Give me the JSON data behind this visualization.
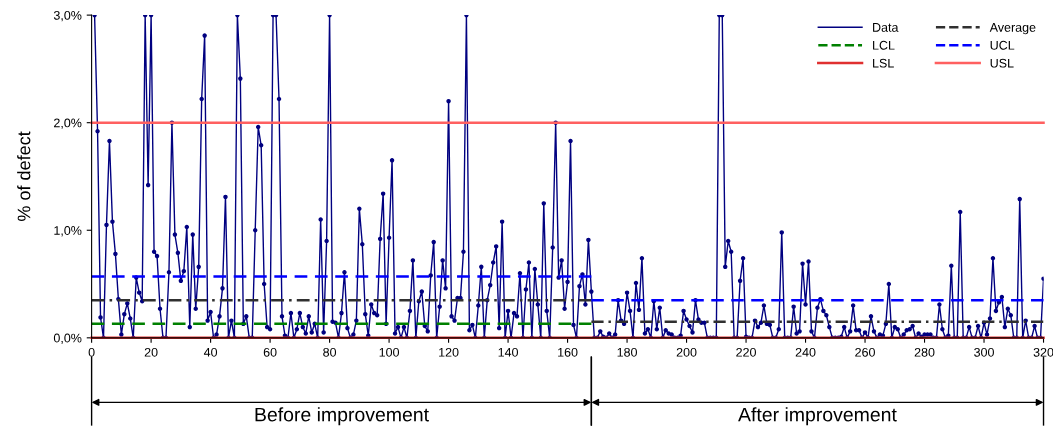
{
  "chart_data": {
    "type": "line",
    "ylabel": "% of defect",
    "xlim": [
      0,
      320
    ],
    "xticks": [
      0,
      20,
      40,
      60,
      80,
      100,
      120,
      140,
      160,
      180,
      200,
      220,
      240,
      260,
      280,
      300,
      320
    ],
    "ylim": [
      0,
      3
    ],
    "yticks": [
      {
        "value": 0,
        "label": "0,0%"
      },
      {
        "value": 1,
        "label": "1,0%"
      },
      {
        "value": 2,
        "label": "2,0%"
      },
      {
        "value": 3,
        "label": "3,0%"
      }
    ],
    "grid": false,
    "legend": "top right",
    "series": [
      {
        "name": "Data",
        "color": "#000080",
        "marker": "circle",
        "line_style": "solid",
        "x": [
          1,
          2,
          3,
          4,
          5,
          6,
          7,
          8,
          9,
          10,
          11,
          12,
          13,
          14,
          15,
          16,
          17,
          18,
          19,
          20,
          21,
          22,
          23,
          24,
          25,
          26,
          27,
          28,
          29,
          30,
          31,
          32,
          33,
          34,
          35,
          36,
          37,
          38,
          39,
          40,
          41,
          42,
          43,
          44,
          45,
          46,
          47,
          48,
          49,
          50,
          51,
          52,
          53,
          54,
          55,
          56,
          57,
          58,
          59,
          60,
          61,
          62,
          63,
          64,
          65,
          66,
          67,
          68,
          69,
          70,
          71,
          72,
          73,
          74,
          75,
          76,
          77,
          78,
          79,
          80,
          81,
          82,
          83,
          84,
          85,
          86,
          87,
          88,
          89,
          90,
          91,
          92,
          93,
          94,
          95,
          96,
          97,
          98,
          99,
          100,
          101,
          102,
          103,
          104,
          105,
          106,
          107,
          108,
          109,
          110,
          111,
          112,
          113,
          114,
          115,
          116,
          117,
          118,
          119,
          120,
          121,
          122,
          123,
          124,
          125,
          126,
          127,
          128,
          129,
          130,
          131,
          132,
          133,
          134,
          135,
          136,
          137,
          138,
          139,
          140,
          141,
          142,
          143,
          144,
          145,
          146,
          147,
          148,
          149,
          150,
          151,
          152,
          153,
          154,
          155,
          156,
          157,
          158,
          159,
          160,
          161,
          162,
          163,
          164,
          165,
          166,
          167,
          168,
          169,
          170,
          171,
          172,
          173,
          174,
          175,
          176,
          177,
          178,
          179,
          180,
          181,
          182,
          183,
          184,
          185,
          186,
          187,
          188,
          189,
          190,
          191,
          192,
          193,
          194,
          195,
          196,
          197,
          198,
          199,
          200,
          201,
          202,
          203,
          204,
          205,
          206,
          207,
          208,
          209,
          210,
          211,
          212,
          213,
          214,
          215,
          216,
          217,
          218,
          219,
          220,
          221,
          222,
          223,
          224,
          225,
          226,
          227,
          228,
          229,
          230,
          231,
          232,
          233,
          234,
          235,
          236,
          237,
          238,
          239,
          240,
          241,
          242,
          243,
          244,
          245,
          246,
          247,
          248,
          249,
          250,
          251,
          252,
          253,
          254,
          255,
          256,
          257,
          258,
          259,
          260,
          261,
          262,
          263,
          264,
          265,
          266,
          267,
          268,
          269,
          270,
          271,
          272,
          273,
          274,
          275,
          276,
          277,
          278,
          279,
          280,
          281,
          282,
          283,
          284,
          285,
          286,
          287,
          288,
          289,
          290,
          291,
          292,
          293,
          294,
          295,
          296,
          297,
          298,
          299,
          300,
          301,
          302,
          303,
          304,
          305,
          306,
          307,
          308,
          309,
          310,
          311,
          312,
          313,
          314,
          315,
          316,
          317,
          318,
          319,
          320
        ],
        "values": [
          3,
          1.92,
          0.19,
          0,
          1.05,
          1.83,
          1.08,
          0.78,
          0.36,
          0.03,
          0.22,
          0.32,
          0.18,
          0,
          0.56,
          0.42,
          0.34,
          3,
          1.42,
          3,
          0.8,
          0.76,
          0.27,
          0,
          0,
          0.61,
          2.0,
          0.96,
          0.79,
          0.53,
          0.62,
          1.03,
          0.1,
          0.96,
          0.27,
          0.66,
          2.22,
          2.81,
          0.16,
          0.24,
          0,
          0.03,
          0.2,
          0.46,
          1.31,
          0,
          0.16,
          0,
          3,
          2.41,
          0.13,
          0.2,
          0,
          0,
          1.0,
          1.96,
          1.79,
          0.5,
          0.1,
          0.08,
          3,
          3,
          2.22,
          0.2,
          0.02,
          0,
          0.23,
          0,
          0.08,
          0.23,
          0.1,
          0.04,
          0.2,
          0.05,
          0.13,
          0,
          1.1,
          0.05,
          0.9,
          3,
          0.15,
          0.14,
          0,
          0.23,
          0.61,
          0.09,
          0,
          0.03,
          0.16,
          1.2,
          0.87,
          0.22,
          0.02,
          0.31,
          0.23,
          0.21,
          0.92,
          1.34,
          0.13,
          0.93,
          1.65,
          0.04,
          0.1,
          0,
          0.1,
          0,
          0.25,
          0.72,
          0,
          0.34,
          0.43,
          0.11,
          0.06,
          0.58,
          0.89,
          0,
          0.29,
          0.72,
          0.46,
          2.2,
          0.2,
          0.16,
          0.37,
          0.37,
          0.8,
          3,
          0.07,
          0.12,
          0,
          0.3,
          0.66,
          0,
          0.35,
          0.49,
          0.7,
          0.85,
          0.09,
          1.08,
          0,
          0.25,
          0,
          0.23,
          0.2,
          0.6,
          0,
          0.45,
          0.7,
          0,
          0.64,
          0.31,
          0,
          1.25,
          0.25,
          0,
          0.84,
          2.0,
          0.56,
          0.72,
          0.27,
          0.52,
          1.83,
          0.12,
          0,
          0.48,
          0.59,
          0.31,
          0.91,
          0.43,
          0,
          0,
          0.06,
          0.01,
          0,
          0.04,
          0,
          0.03,
          0.35,
          0.16,
          0.13,
          0.42,
          0.25,
          0,
          0.51,
          0.26,
          0.74,
          0.04,
          0.08,
          0,
          0.34,
          0.08,
          0.28,
          0,
          0.07,
          0.04,
          0.03,
          0,
          0,
          0.02,
          0.25,
          0.17,
          0.11,
          0.05,
          0.35,
          0.17,
          0.14,
          0.14,
          0,
          0,
          0,
          0,
          3,
          3,
          0.66,
          0.9,
          0.8,
          0,
          0,
          0.53,
          0.74,
          0.01,
          0,
          0,
          0.16,
          0.1,
          0.14,
          0.3,
          0.13,
          0.12,
          0,
          0,
          0.08,
          0.98,
          0,
          0,
          0,
          0.29,
          0.04,
          0.06,
          0.69,
          0.31,
          0.71,
          0.06,
          0,
          0.28,
          0.36,
          0.25,
          0.21,
          0.1,
          0,
          0,
          0,
          0.01,
          0.1,
          0,
          0.06,
          0.3,
          0.07,
          0.07,
          0,
          0.05,
          0,
          0.2,
          0.06,
          0,
          0.03,
          0.02,
          0.13,
          0.5,
          0,
          0.1,
          0.08,
          0,
          0.03,
          0.07,
          0.08,
          0.11,
          0,
          0.04,
          0.01,
          0.03,
          0.03,
          0.03,
          0,
          0,
          0.31,
          0.08,
          0,
          0.02,
          0.67,
          0,
          0,
          1.17,
          0,
          0,
          0.1,
          0,
          0,
          0.11,
          0,
          0.14,
          0.03,
          0.18,
          0.74,
          0.25,
          0.33,
          0.38,
          0.1,
          0.27,
          0.21,
          0,
          0,
          1.29,
          0,
          0.16,
          0,
          0,
          0.11,
          0,
          0,
          0.55
        ]
      },
      {
        "name": "LCL",
        "color": "#008000",
        "marker": "none",
        "line_style": "dashed",
        "x": [
          0,
          168
        ],
        "values": [
          0.13,
          0.13
        ]
      },
      {
        "name": "LSL",
        "color": "#e03030",
        "marker": "none",
        "line_style": "solid",
        "x": [
          0,
          320
        ],
        "values": [
          0,
          0
        ]
      },
      {
        "name": "Average",
        "color": "#303030",
        "marker": "none",
        "line_style": "dashdot",
        "x": [
          0,
          168
        ],
        "values": [
          0.35,
          0.35
        ]
      },
      {
        "color": "#303030",
        "marker": "none",
        "line_style": "dashdot",
        "x": [
          168,
          320
        ],
        "values": [
          0.15,
          0.15
        ]
      },
      {
        "name": "UCL",
        "color": "#0000ff",
        "marker": "none",
        "line_style": "dashed",
        "x": [
          0,
          168
        ],
        "values": [
          0.57,
          0.57
        ]
      },
      {
        "color": "#0000ff",
        "marker": "none",
        "line_style": "dashed",
        "x": [
          168,
          320
        ],
        "values": [
          0.35,
          0.35
        ]
      },
      {
        "name": "USL",
        "color": "#ff6060",
        "marker": "none",
        "line_style": "solid",
        "x": [
          0,
          320
        ],
        "values": [
          2,
          2
        ]
      }
    ],
    "annotations": [
      "Before improvement",
      "After improvement"
    ]
  }
}
